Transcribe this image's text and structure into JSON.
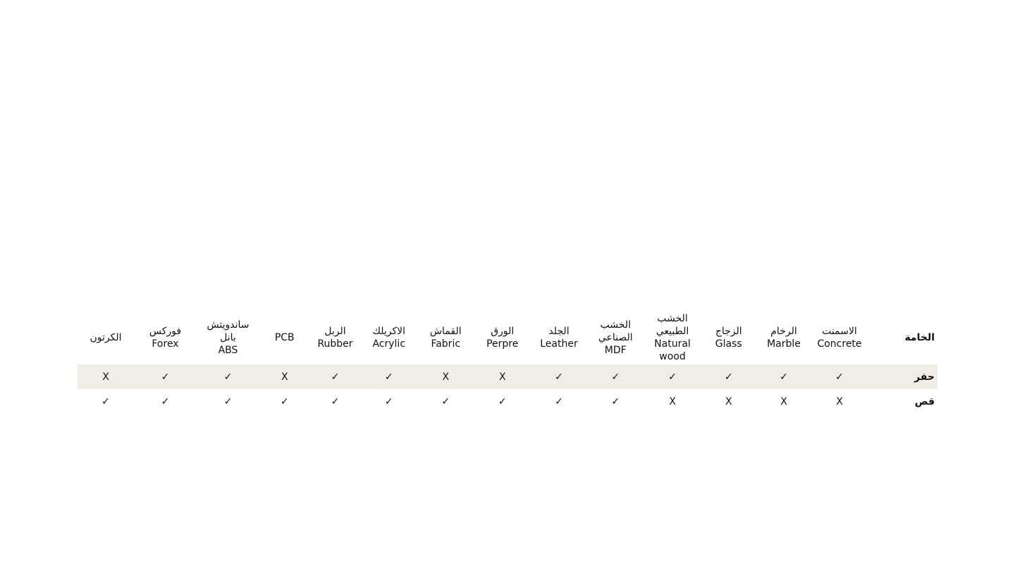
{
  "table": {
    "header": [
      [
        "الخامة"
      ],
      [
        "الاسمنت",
        "Concrete"
      ],
      [
        "الرخام",
        "Marble"
      ],
      [
        "الزجاج",
        "Glass"
      ],
      [
        "الخشب الطبيعي",
        "Natural wood"
      ],
      [
        "الخشب الصناعي",
        "MDF"
      ],
      [
        "الجلد",
        "Leather"
      ],
      [
        "الورق",
        "Perpre"
      ],
      [
        "القماش",
        "Fabric"
      ],
      [
        "الاكريلك",
        "Acrylic"
      ],
      [
        "الربل",
        "Rubber"
      ],
      [
        "PCB"
      ],
      [
        "ساندويتش بانل",
        "ABS"
      ],
      [
        "فوركس",
        "Forex"
      ],
      [
        "الكرتون"
      ]
    ],
    "rows": [
      {
        "label": "حفر",
        "cells": [
          "✓",
          "✓",
          "✓",
          "✓",
          "✓",
          "✓",
          "X",
          "X",
          "✓",
          "✓",
          "X",
          "✓",
          "✓",
          "X"
        ]
      },
      {
        "label": "قص",
        "cells": [
          "X",
          "X",
          "X",
          "X",
          "✓",
          "✓",
          "✓",
          "✓",
          "✓",
          "✓",
          "✓",
          "✓",
          "✓",
          "✓"
        ]
      }
    ]
  }
}
